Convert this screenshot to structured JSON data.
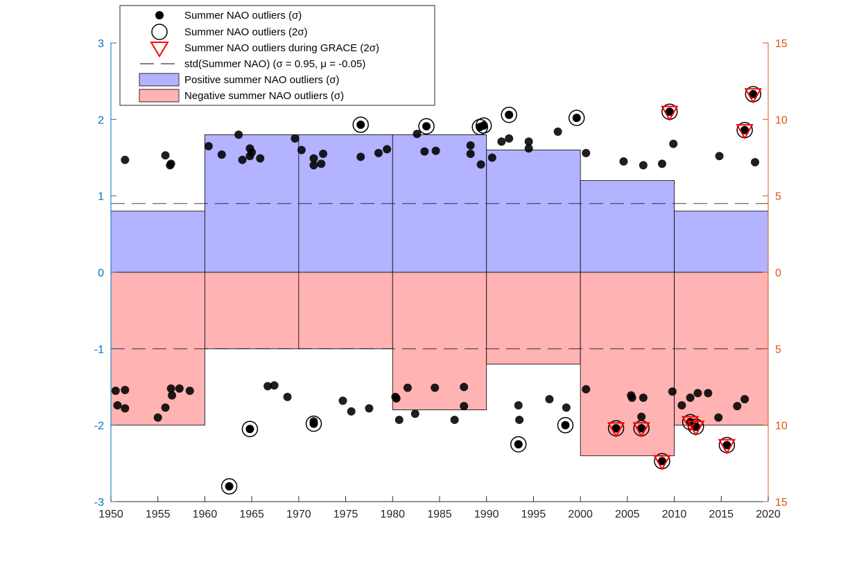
{
  "chart_data": {
    "type": "scatter",
    "title": "",
    "xlabel": "",
    "ylabel": "",
    "xlim": [
      1950,
      2020
    ],
    "ylim_left": [
      -3,
      3
    ],
    "ylim_right_labels": [
      "15",
      "10",
      "5",
      "0",
      "5",
      "10",
      "15"
    ],
    "xticks": [
      "1950",
      "1955",
      "1960",
      "1965",
      "1970",
      "1975",
      "1980",
      "1985",
      "1990",
      "1995",
      "2000",
      "2005",
      "2010",
      "2015",
      "2020"
    ],
    "yticks_left": [
      "-3",
      "-2",
      "-1",
      "0",
      "1",
      "2",
      "3"
    ],
    "std_line": {
      "upper": 0.9,
      "lower": -1.0
    },
    "colors": {
      "left_axis": "#0072bd",
      "right_axis": "#d95319",
      "positive_fill": "#b3b3ff",
      "negative_fill": "#ffb3b3",
      "points": "#000000",
      "grace_marker": "#ff0000"
    },
    "legend": {
      "position": "top-left",
      "entries": [
        "Summer NAO outliers (σ)",
        "Summer NAO outliers (2σ)",
        "Summer NAO outliers during GRACE (2σ)",
        "std(Summer NAO) (σ = 0.95, μ = -0.05)",
        "Positive summer NAO outliers (σ)",
        "Negative summer NAO outliers (σ)"
      ]
    },
    "positive_bars": [
      {
        "decade": "1950s",
        "x0": 1950,
        "x1": 1960,
        "value": 0.8
      },
      {
        "decade": "1960s",
        "x0": 1960,
        "x1": 1970,
        "value": 1.8
      },
      {
        "decade": "1970s",
        "x0": 1970,
        "x1": 1980,
        "value": 1.8
      },
      {
        "decade": "1980s",
        "x0": 1980,
        "x1": 1990,
        "value": 1.8
      },
      {
        "decade": "1990s",
        "x0": 1990,
        "x1": 2000,
        "value": 1.6
      },
      {
        "decade": "2000s",
        "x0": 2000,
        "x1": 2010,
        "value": 1.2
      },
      {
        "decade": "2010s",
        "x0": 2010,
        "x1": 2020,
        "value": 0.8
      }
    ],
    "negative_bars": [
      {
        "decade": "1950s",
        "x0": 1950,
        "x1": 1960,
        "value": -2.0
      },
      {
        "decade": "1960s",
        "x0": 1960,
        "x1": 1970,
        "value": -1.0
      },
      {
        "decade": "1970s",
        "x0": 1970,
        "x1": 1980,
        "value": -1.0
      },
      {
        "decade": "1980s",
        "x0": 1980,
        "x1": 1990,
        "value": -1.8
      },
      {
        "decade": "1990s",
        "x0": 1990,
        "x1": 2000,
        "value": -1.2
      },
      {
        "decade": "2000s",
        "x0": 2000,
        "x1": 2010,
        "value": -2.4
      },
      {
        "decade": "2010s",
        "x0": 2010,
        "x1": 2020,
        "value": -2.0
      }
    ],
    "points_sigma": [
      [
        1951.5,
        1.47
      ],
      [
        1955.8,
        1.53
      ],
      [
        1956.3,
        1.4
      ],
      [
        1956.4,
        1.42
      ],
      [
        1960.4,
        1.65
      ],
      [
        1961.8,
        1.54
      ],
      [
        1963.6,
        1.8
      ],
      [
        1964.0,
        1.47
      ],
      [
        1964.8,
        1.62
      ],
      [
        1964.8,
        1.52
      ],
      [
        1965.0,
        1.57
      ],
      [
        1965.9,
        1.49
      ],
      [
        1969.6,
        1.75
      ],
      [
        1970.3,
        1.6
      ],
      [
        1971.6,
        1.49
      ],
      [
        1971.6,
        1.4
      ],
      [
        1972.4,
        1.42
      ],
      [
        1972.6,
        1.55
      ],
      [
        1976.6,
        1.51
      ],
      [
        1978.5,
        1.56
      ],
      [
        1979.4,
        1.61
      ],
      [
        1982.6,
        1.81
      ],
      [
        1983.4,
        1.58
      ],
      [
        1984.6,
        1.59
      ],
      [
        1988.3,
        1.66
      ],
      [
        1988.3,
        1.55
      ],
      [
        1989.4,
        1.41
      ],
      [
        1990.6,
        1.5
      ],
      [
        1991.6,
        1.71
      ],
      [
        1992.4,
        1.75
      ],
      [
        1994.5,
        1.71
      ],
      [
        1994.5,
        1.62
      ],
      [
        1997.6,
        1.84
      ],
      [
        2000.6,
        1.56
      ],
      [
        2004.6,
        1.45
      ],
      [
        2006.7,
        1.4
      ],
      [
        2008.7,
        1.42
      ],
      [
        2009.9,
        1.68
      ],
      [
        2014.8,
        1.52
      ],
      [
        2018.6,
        1.44
      ],
      [
        1950.5,
        -1.55
      ],
      [
        1951.5,
        -1.54
      ],
      [
        1950.7,
        -1.74
      ],
      [
        1951.5,
        -1.78
      ],
      [
        1955.0,
        -1.9
      ],
      [
        1955.8,
        -1.77
      ],
      [
        1956.4,
        -1.52
      ],
      [
        1956.5,
        -1.61
      ],
      [
        1957.3,
        -1.52
      ],
      [
        1958.4,
        -1.55
      ],
      [
        1966.7,
        -1.49
      ],
      [
        1967.4,
        -1.48
      ],
      [
        1968.8,
        -1.63
      ],
      [
        1971.6,
        -1.95
      ],
      [
        1971.6,
        -1.98
      ],
      [
        1974.7,
        -1.68
      ],
      [
        1975.6,
        -1.82
      ],
      [
        1977.5,
        -1.78
      ],
      [
        1980.3,
        -1.63
      ],
      [
        1980.4,
        -1.65
      ],
      [
        1980.7,
        -1.93
      ],
      [
        1981.6,
        -1.51
      ],
      [
        1982.4,
        -1.85
      ],
      [
        1984.5,
        -1.51
      ],
      [
        1986.6,
        -1.93
      ],
      [
        1987.6,
        -1.5
      ],
      [
        1987.6,
        -1.75
      ],
      [
        1993.4,
        -1.74
      ],
      [
        1993.5,
        -1.93
      ],
      [
        1996.7,
        -1.66
      ],
      [
        1998.5,
        -1.77
      ],
      [
        2000.6,
        -1.53
      ],
      [
        2005.4,
        -1.61
      ],
      [
        2005.5,
        -1.64
      ],
      [
        2006.5,
        -1.89
      ],
      [
        2006.7,
        -1.64
      ],
      [
        2009.8,
        -1.56
      ],
      [
        2010.8,
        -1.74
      ],
      [
        2011.7,
        -1.64
      ],
      [
        2012.5,
        -1.58
      ],
      [
        2013.6,
        -1.58
      ],
      [
        2014.7,
        -1.9
      ],
      [
        2016.7,
        -1.75
      ],
      [
        2017.5,
        -1.66
      ]
    ],
    "points_2sigma": [
      [
        1962.6,
        -2.8
      ],
      [
        1964.8,
        -2.05
      ],
      [
        1971.6,
        -1.98
      ],
      [
        1976.6,
        1.93
      ],
      [
        1983.6,
        1.91
      ],
      [
        1989.3,
        1.9
      ],
      [
        1989.7,
        1.92
      ],
      [
        1992.4,
        2.06
      ],
      [
        1993.4,
        -2.25
      ],
      [
        1998.4,
        -2.0
      ],
      [
        1999.6,
        2.02
      ],
      [
        2003.8,
        -2.04
      ],
      [
        2006.5,
        -2.04
      ],
      [
        2008.7,
        -2.47
      ],
      [
        2009.5,
        2.1
      ],
      [
        2011.7,
        -1.96
      ],
      [
        2012.3,
        -2.02
      ],
      [
        2015.6,
        -2.26
      ],
      [
        2017.5,
        1.86
      ],
      [
        2018.4,
        2.33
      ]
    ],
    "points_grace": [
      [
        2003.8,
        -2.04
      ],
      [
        2006.5,
        -2.04
      ],
      [
        2008.7,
        -2.47
      ],
      [
        2009.5,
        2.1
      ],
      [
        2011.7,
        -1.96
      ],
      [
        2012.3,
        -2.02
      ],
      [
        2015.6,
        -2.26
      ],
      [
        2017.5,
        1.86
      ],
      [
        2018.4,
        2.33
      ]
    ]
  }
}
